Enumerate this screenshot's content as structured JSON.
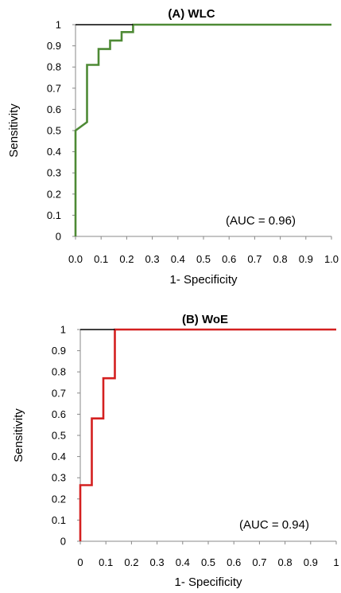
{
  "chart_data": [
    {
      "type": "line",
      "title": "(A)    WLC",
      "xlabel": "1- Specificity",
      "ylabel": "Sensitivity",
      "annotation": "(AUC = 0.96)",
      "xlim": [
        0,
        1
      ],
      "ylim": [
        0,
        1
      ],
      "x_ticks": [
        "0.0",
        "0.1",
        "0.2",
        "0.3",
        "0.4",
        "0.5",
        "0.6",
        "0.7",
        "0.8",
        "0.9",
        "1.0"
      ],
      "y_ticks": [
        "0",
        "0.1",
        "0.2",
        "0.3",
        "0.4",
        "0.5",
        "0.6",
        "0.7",
        "0.8",
        "0.9",
        "1"
      ],
      "grid": false,
      "series": [
        {
          "color": "#4e8a35",
          "x": [
            0,
            0,
            0.045,
            0.045,
            0.09,
            0.09,
            0.135,
            0.135,
            0.18,
            0.18,
            0.225,
            0.225,
            1.0
          ],
          "y": [
            0,
            0.5,
            0.54,
            0.81,
            0.81,
            0.885,
            0.885,
            0.925,
            0.925,
            0.965,
            0.965,
            1.0,
            1.0
          ]
        },
        {
          "color": "#000000",
          "x": [
            0,
            0.225
          ],
          "y": [
            1.0,
            1.0
          ]
        }
      ]
    },
    {
      "type": "line",
      "title": "(B)    WoE",
      "xlabel": "1- Specificity",
      "ylabel": "Sensitivity",
      "annotation": "(AUC = 0.94)",
      "xlim": [
        0,
        1
      ],
      "ylim": [
        0,
        1
      ],
      "x_ticks": [
        "0",
        "0.1",
        "0.2",
        "0.3",
        "0.4",
        "0.5",
        "0.6",
        "0.7",
        "0.8",
        "0.9",
        "1"
      ],
      "y_ticks": [
        "0",
        "0.1",
        "0.2",
        "0.3",
        "0.4",
        "0.5",
        "0.6",
        "0.7",
        "0.8",
        "0.9",
        "1"
      ],
      "grid": false,
      "series": [
        {
          "color": "#d42020",
          "x": [
            0,
            0,
            0.045,
            0.045,
            0.09,
            0.09,
            0.135,
            0.135,
            1.0
          ],
          "y": [
            0,
            0.265,
            0.265,
            0.58,
            0.58,
            0.77,
            0.77,
            1.0,
            1.0
          ]
        },
        {
          "color": "#000000",
          "x": [
            0,
            0.135
          ],
          "y": [
            1.0,
            1.0
          ]
        }
      ]
    }
  ]
}
